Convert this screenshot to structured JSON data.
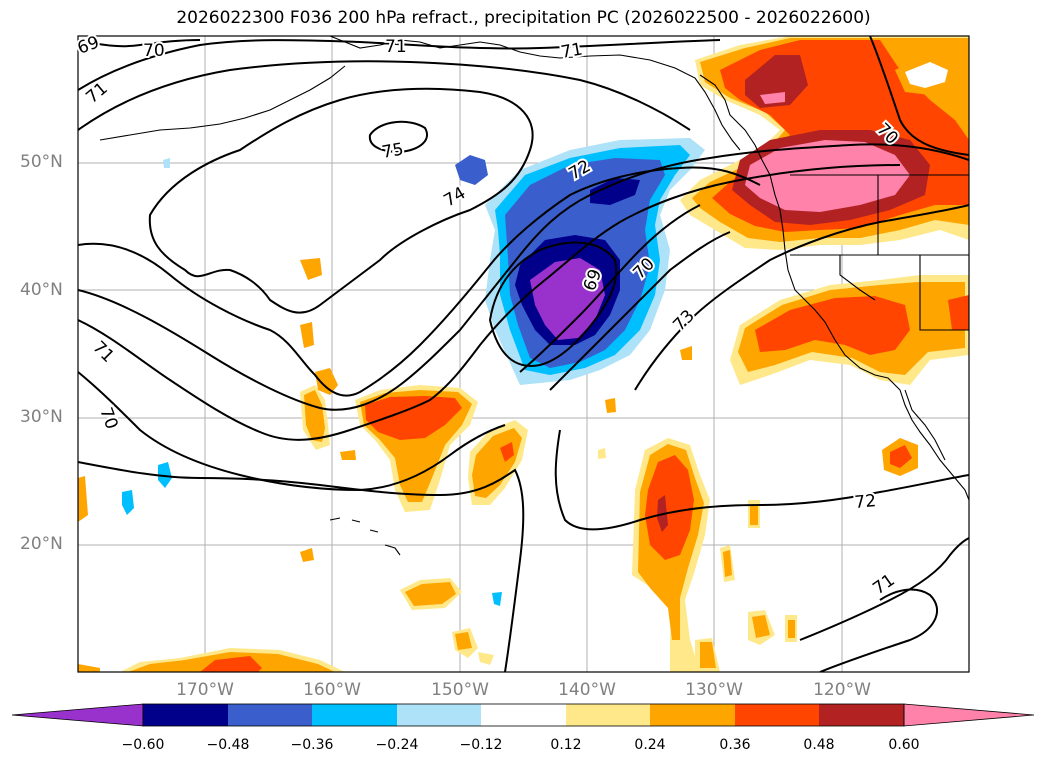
{
  "title": "2026022300 F036 200 hPa refract., precipitation PC (2026022500 - 2026022600)",
  "lat_labels": [
    "50°N",
    "40°N",
    "30°N",
    "20°N"
  ],
  "lon_labels": [
    "170°W",
    "160°W",
    "150°W",
    "140°W",
    "130°W",
    "120°W"
  ],
  "contour_labels": [
    "69",
    "70",
    "71",
    "71",
    "71",
    "72",
    "74",
    "75",
    "69",
    "70",
    "73",
    "71",
    "70",
    "72",
    "70",
    "71"
  ],
  "colorbar": {
    "colors": [
      "#9932CC",
      "#00008B",
      "#3A5FCD",
      "#00BFFF",
      "#ADE2F8",
      "#FFFFFF",
      "#FFE88A",
      "#FFA500",
      "#FF4500",
      "#B22222",
      "#FF82AB"
    ],
    "ticks": [
      "−0.60",
      "−0.48",
      "−0.36",
      "−0.24",
      "−0.12",
      "0.12",
      "0.24",
      "0.36",
      "0.48",
      "0.60"
    ]
  }
}
